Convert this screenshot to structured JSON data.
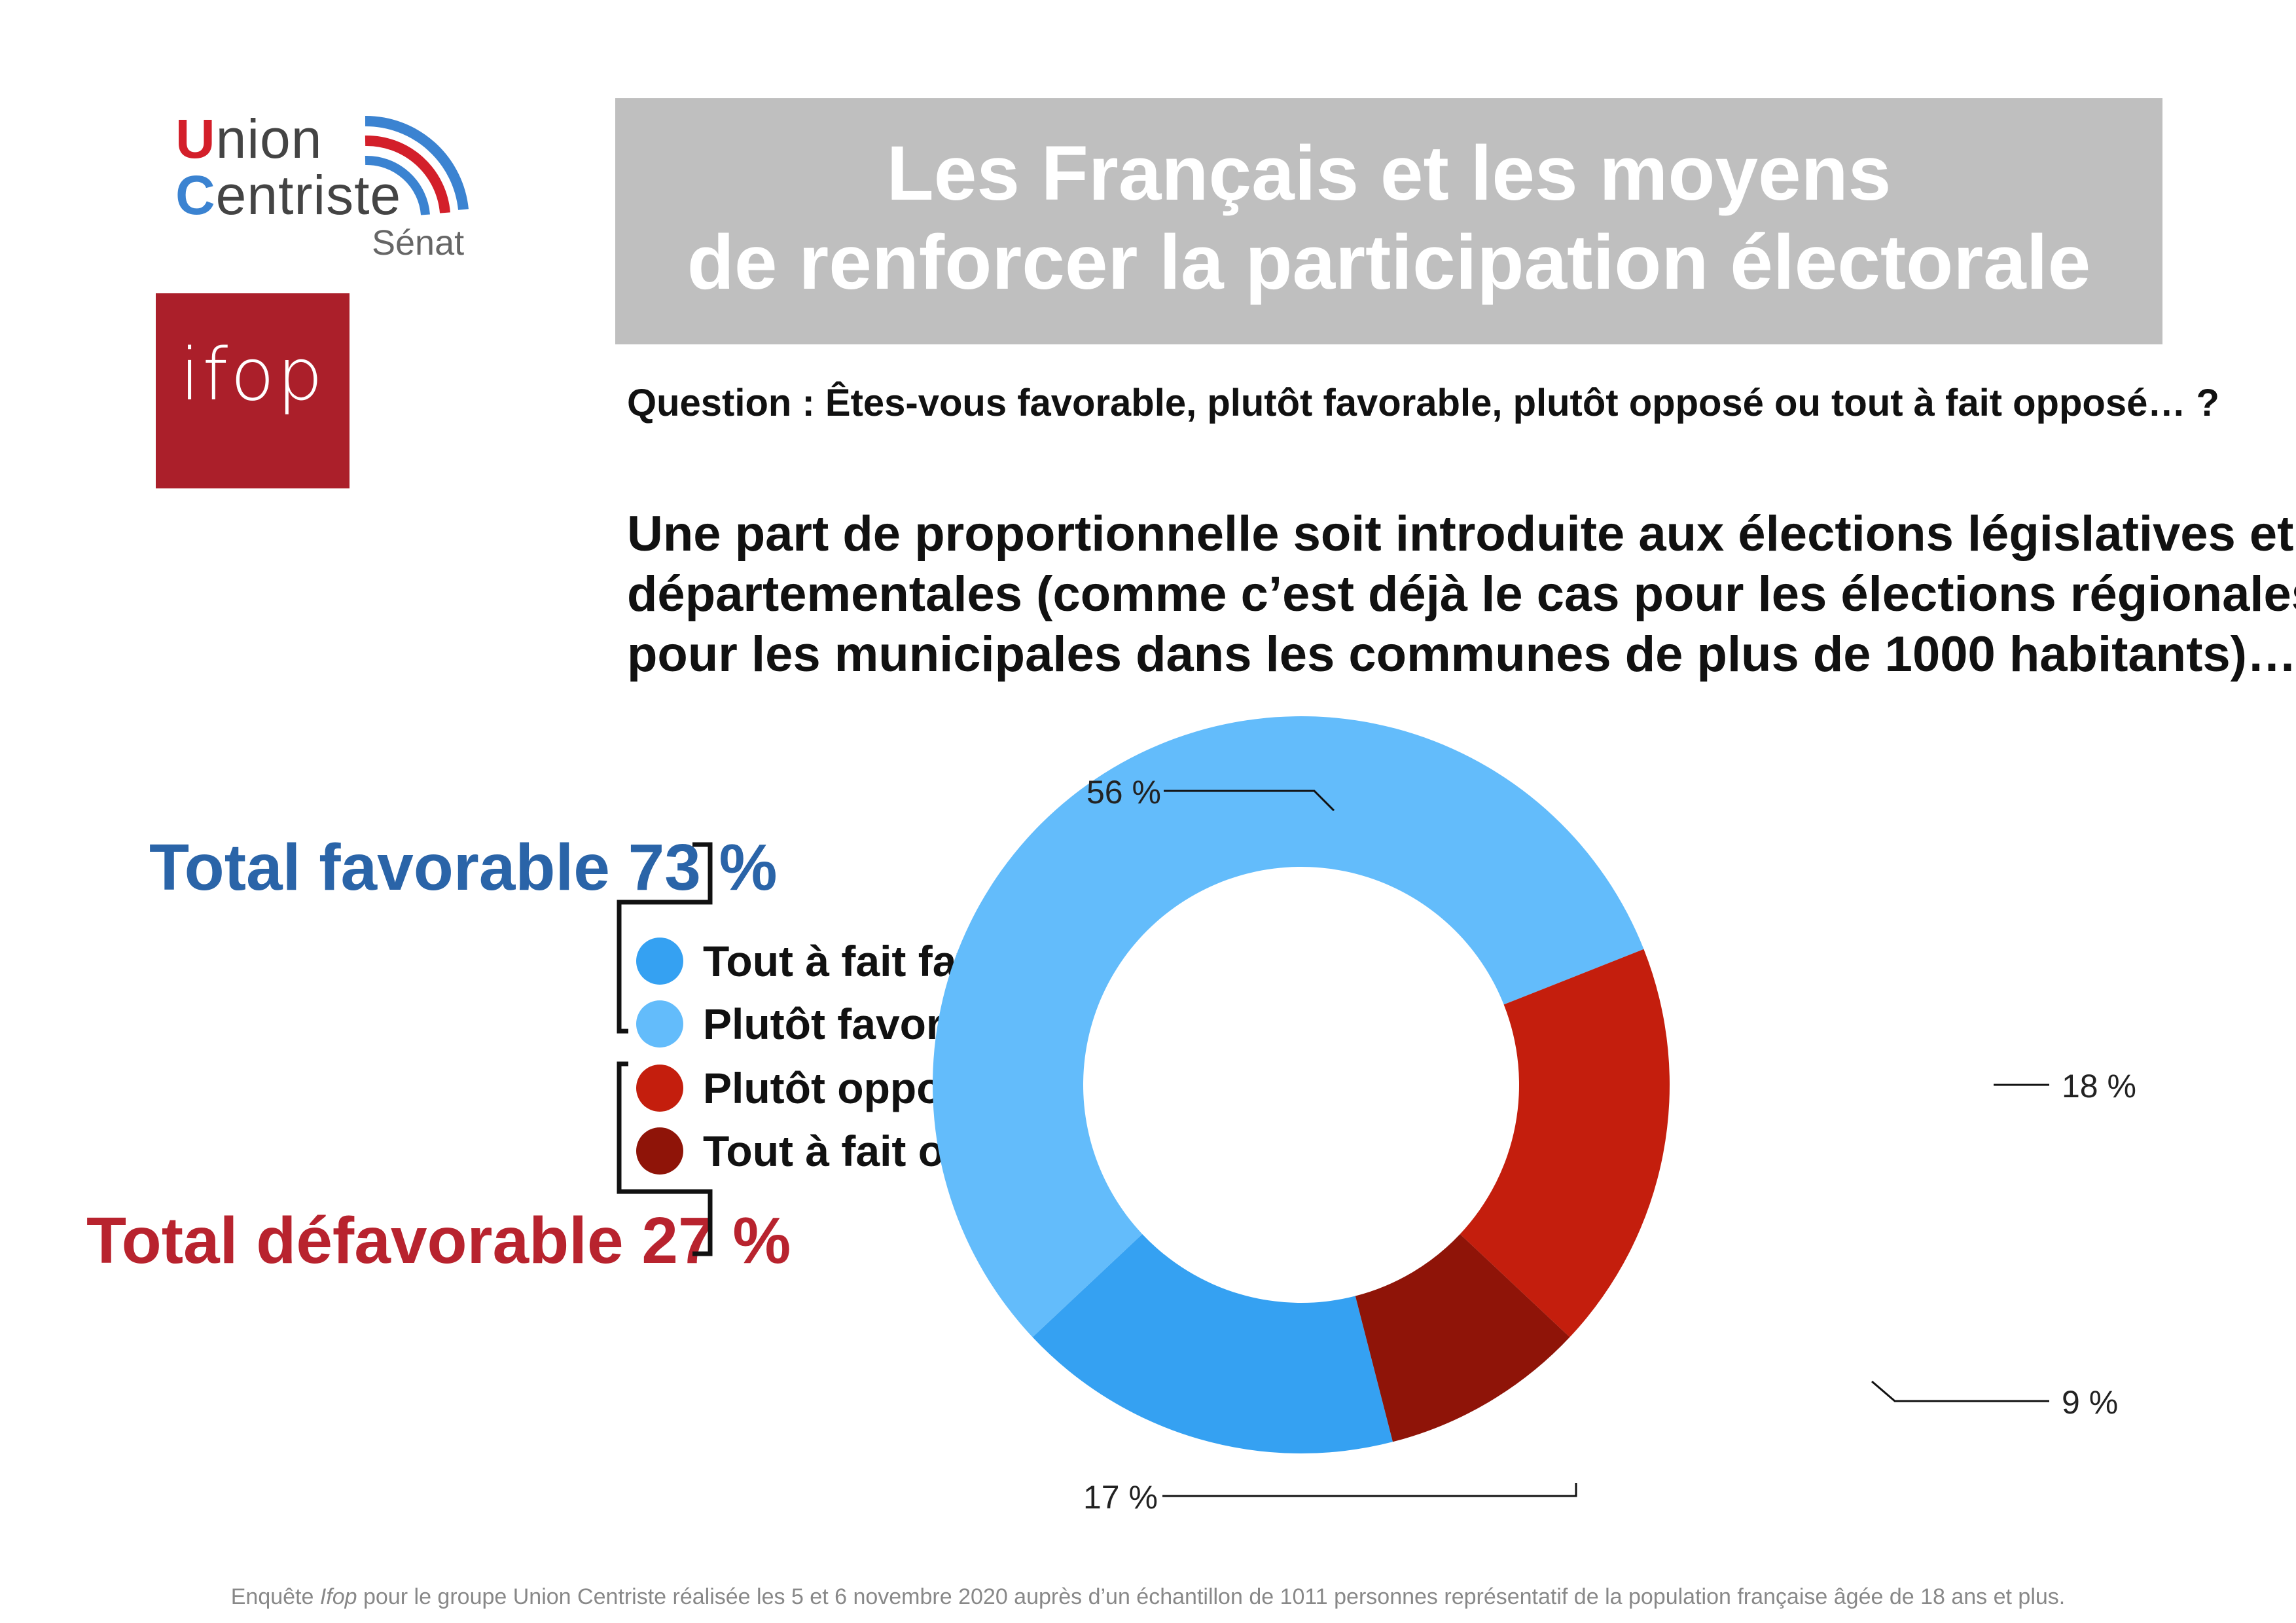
{
  "logo_union_centriste": {
    "line1_initial": "U",
    "line1_rest": "nion",
    "line2_initial": "C",
    "line2_rest": "entriste",
    "line3": "Sénat"
  },
  "logo_ifop": {
    "text": "ifop"
  },
  "title": {
    "line1": "Les Français et les moyens",
    "line2": "de renforcer la participation électorale"
  },
  "question": "Question : Êtes-vous favorable, plutôt favorable, plutôt opposé ou tout à fait opposé… ?",
  "statement": {
    "line1": "Une part de proportionnelle soit introduite aux élections législatives et",
    "line2": "départementales (comme c’est déjà le cas pour les élections régionales et",
    "line3": "pour les municipales dans les communes de plus de 1000 habitants)…"
  },
  "totals": {
    "favorable": "Total favorable 73 %",
    "defavorable": "Total défavorable 27 %"
  },
  "chart_data": {
    "type": "pie",
    "donut": true,
    "categories": [
      "Tout à fait favorable",
      "Plutôt favorable",
      "Plutôt opposé",
      "Tout à fait opposé"
    ],
    "values": [
      17,
      56,
      18,
      9
    ],
    "labels": [
      "17 %",
      "56 %",
      "18 %",
      "9 %"
    ],
    "colors": [
      "#35a1f2",
      "#63bcfb",
      "#c41e0d",
      "#8f1408"
    ],
    "legend_position": "left"
  },
  "footer": {
    "part1": "Enquête ",
    "italic": "Ifop",
    "part2": " pour le groupe Union Centriste réalisée les 5 et 6 novembre 2020 auprès d’un échantillon de 1011 personnes représentatif de la population française âgée de 18 ans et plus."
  }
}
